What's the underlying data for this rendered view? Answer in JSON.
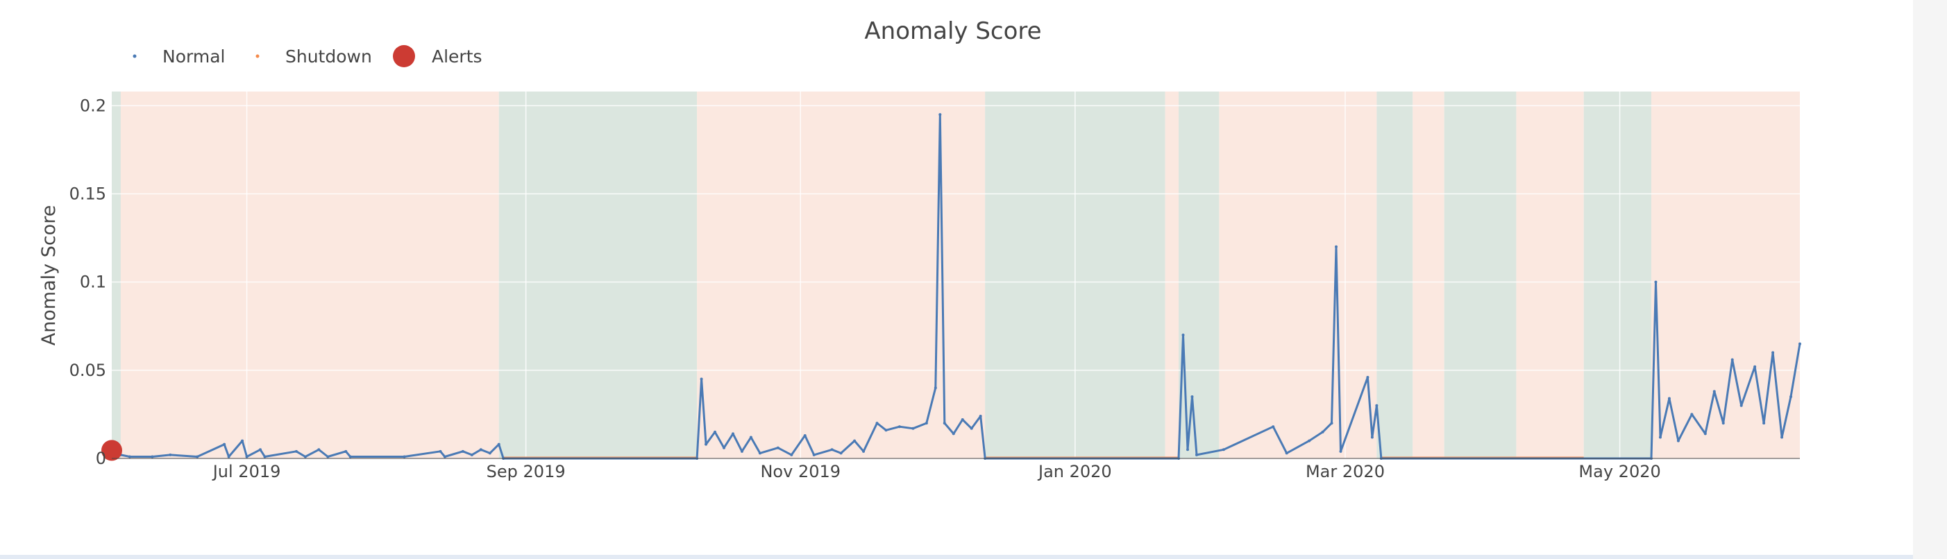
{
  "chart_data": {
    "type": "line",
    "title": "Anomaly Score",
    "xlabel": "",
    "ylabel": "Anomaly Score",
    "x_range": [
      "2019-06-01",
      "2020-06-10"
    ],
    "ylim": [
      0,
      0.2
    ],
    "yticks": [
      {
        "value": 0,
        "label": "0"
      },
      {
        "value": 0.05,
        "label": "0.05"
      },
      {
        "value": 0.1,
        "label": "0.1"
      },
      {
        "value": 0.15,
        "label": "0.15"
      },
      {
        "value": 0.2,
        "label": "0.2"
      }
    ],
    "xticks": [
      {
        "date": "2019-07-01",
        "label": "Jul 2019"
      },
      {
        "date": "2019-09-01",
        "label": "Sep 2019"
      },
      {
        "date": "2019-11-01",
        "label": "Nov 2019"
      },
      {
        "date": "2020-01-01",
        "label": "Jan 2020"
      },
      {
        "date": "2020-03-01",
        "label": "Mar 2020"
      },
      {
        "date": "2020-05-01",
        "label": "May 2020"
      }
    ],
    "grid": true,
    "legend": {
      "placement": "top-left",
      "orientation": "horizontal",
      "entries": [
        {
          "name": "Normal",
          "color": "#4a7ab5",
          "marker": "small-dot"
        },
        {
          "name": "Shutdown",
          "color": "#f58a4b",
          "marker": "small-dot"
        },
        {
          "name": "Alerts",
          "color": "#cc3b33",
          "marker": "large-dot"
        }
      ]
    },
    "background_bands": [
      {
        "start": "2019-06-01",
        "end": "2019-06-03",
        "state": "shutdown"
      },
      {
        "start": "2019-06-03",
        "end": "2019-08-26",
        "state": "normal"
      },
      {
        "start": "2019-08-26",
        "end": "2019-10-09",
        "state": "shutdown"
      },
      {
        "start": "2019-10-09",
        "end": "2019-12-12",
        "state": "normal"
      },
      {
        "start": "2019-12-12",
        "end": "2020-01-21",
        "state": "shutdown"
      },
      {
        "start": "2020-01-21",
        "end": "2020-01-24",
        "state": "normal"
      },
      {
        "start": "2020-01-24",
        "end": "2020-02-02",
        "state": "shutdown"
      },
      {
        "start": "2020-02-02",
        "end": "2020-03-08",
        "state": "normal"
      },
      {
        "start": "2020-03-08",
        "end": "2020-03-16",
        "state": "shutdown"
      },
      {
        "start": "2020-03-16",
        "end": "2020-03-23",
        "state": "normal"
      },
      {
        "start": "2020-03-23",
        "end": "2020-04-08",
        "state": "shutdown"
      },
      {
        "start": "2020-04-08",
        "end": "2020-04-23",
        "state": "normal"
      },
      {
        "start": "2020-04-23",
        "end": "2020-05-08",
        "state": "shutdown"
      },
      {
        "start": "2020-05-08",
        "end": "2020-06-10",
        "state": "normal"
      }
    ],
    "band_colors": {
      "normal": "#fbe8e0",
      "shutdown": "#dbe6df"
    },
    "series": [
      {
        "name": "Normal",
        "color": "#4a7ab5",
        "points": [
          [
            "2019-06-01",
            0.004
          ],
          [
            "2019-06-03",
            0.002
          ],
          [
            "2019-06-05",
            0.001
          ],
          [
            "2019-06-10",
            0.001
          ],
          [
            "2019-06-14",
            0.002
          ],
          [
            "2019-06-20",
            0.001
          ],
          [
            "2019-06-26",
            0.008
          ],
          [
            "2019-06-27",
            0.001
          ],
          [
            "2019-06-30",
            0.01
          ],
          [
            "2019-07-01",
            0.001
          ],
          [
            "2019-07-04",
            0.005
          ],
          [
            "2019-07-05",
            0.001
          ],
          [
            "2019-07-12",
            0.004
          ],
          [
            "2019-07-14",
            0.001
          ],
          [
            "2019-07-17",
            0.005
          ],
          [
            "2019-07-19",
            0.001
          ],
          [
            "2019-07-23",
            0.004
          ],
          [
            "2019-07-24",
            0.001
          ],
          [
            "2019-08-05",
            0.001
          ],
          [
            "2019-08-13",
            0.004
          ],
          [
            "2019-08-14",
            0.001
          ],
          [
            "2019-08-18",
            0.004
          ],
          [
            "2019-08-20",
            0.002
          ],
          [
            "2019-08-22",
            0.005
          ],
          [
            "2019-08-24",
            0.003
          ],
          [
            "2019-08-26",
            0.008
          ],
          [
            "2019-08-27",
            0.0
          ],
          [
            "2019-10-09",
            0.0
          ],
          [
            "2019-10-10",
            0.045
          ],
          [
            "2019-10-11",
            0.008
          ],
          [
            "2019-10-13",
            0.015
          ],
          [
            "2019-10-15",
            0.006
          ],
          [
            "2019-10-17",
            0.014
          ],
          [
            "2019-10-19",
            0.004
          ],
          [
            "2019-10-21",
            0.012
          ],
          [
            "2019-10-23",
            0.003
          ],
          [
            "2019-10-27",
            0.006
          ],
          [
            "2019-10-30",
            0.002
          ],
          [
            "2019-11-02",
            0.013
          ],
          [
            "2019-11-04",
            0.002
          ],
          [
            "2019-11-08",
            0.005
          ],
          [
            "2019-11-10",
            0.003
          ],
          [
            "2019-11-13",
            0.01
          ],
          [
            "2019-11-15",
            0.004
          ],
          [
            "2019-11-18",
            0.02
          ],
          [
            "2019-11-20",
            0.016
          ],
          [
            "2019-11-23",
            0.018
          ],
          [
            "2019-11-26",
            0.017
          ],
          [
            "2019-11-29",
            0.02
          ],
          [
            "2019-12-01",
            0.04
          ],
          [
            "2019-12-02",
            0.195
          ],
          [
            "2019-12-03",
            0.02
          ],
          [
            "2019-12-05",
            0.014
          ],
          [
            "2019-12-07",
            0.022
          ],
          [
            "2019-12-09",
            0.017
          ],
          [
            "2019-12-11",
            0.024
          ],
          [
            "2019-12-12",
            0.0
          ],
          [
            "2020-01-24",
            0.0
          ],
          [
            "2020-01-25",
            0.07
          ],
          [
            "2020-01-26",
            0.005
          ],
          [
            "2020-01-27",
            0.035
          ],
          [
            "2020-01-28",
            0.002
          ],
          [
            "2020-02-03",
            0.005
          ],
          [
            "2020-02-14",
            0.018
          ],
          [
            "2020-02-17",
            0.003
          ],
          [
            "2020-02-22",
            0.01
          ],
          [
            "2020-02-25",
            0.015
          ],
          [
            "2020-02-27",
            0.02
          ],
          [
            "2020-02-28",
            0.12
          ],
          [
            "2020-02-29",
            0.004
          ],
          [
            "2020-03-06",
            0.046
          ],
          [
            "2020-03-07",
            0.012
          ],
          [
            "2020-03-08",
            0.03
          ],
          [
            "2020-03-09",
            0.0
          ],
          [
            "2020-05-08",
            0.0
          ],
          [
            "2020-05-09",
            0.1
          ],
          [
            "2020-05-10",
            0.012
          ],
          [
            "2020-05-12",
            0.034
          ],
          [
            "2020-05-14",
            0.01
          ],
          [
            "2020-05-17",
            0.025
          ],
          [
            "2020-05-20",
            0.014
          ],
          [
            "2020-05-22",
            0.038
          ],
          [
            "2020-05-24",
            0.02
          ],
          [
            "2020-05-26",
            0.056
          ],
          [
            "2020-05-28",
            0.03
          ],
          [
            "2020-05-31",
            0.052
          ],
          [
            "2020-06-02",
            0.02
          ],
          [
            "2020-06-04",
            0.06
          ],
          [
            "2020-06-06",
            0.012
          ],
          [
            "2020-06-08",
            0.035
          ],
          [
            "2020-06-10",
            0.065
          ]
        ]
      },
      {
        "name": "Shutdown",
        "color": "#f58a4b",
        "points": [
          [
            "2019-08-27",
            0.0
          ],
          [
            "2019-10-09",
            0.0
          ],
          [
            "2019-12-12",
            0.0
          ],
          [
            "2020-01-24",
            0.0
          ],
          [
            "2020-03-09",
            0.0
          ],
          [
            "2020-04-23",
            0.0
          ]
        ]
      },
      {
        "name": "Alerts",
        "color": "#cc3b33",
        "points": [
          [
            "2019-06-01",
            0.003
          ]
        ]
      }
    ]
  }
}
